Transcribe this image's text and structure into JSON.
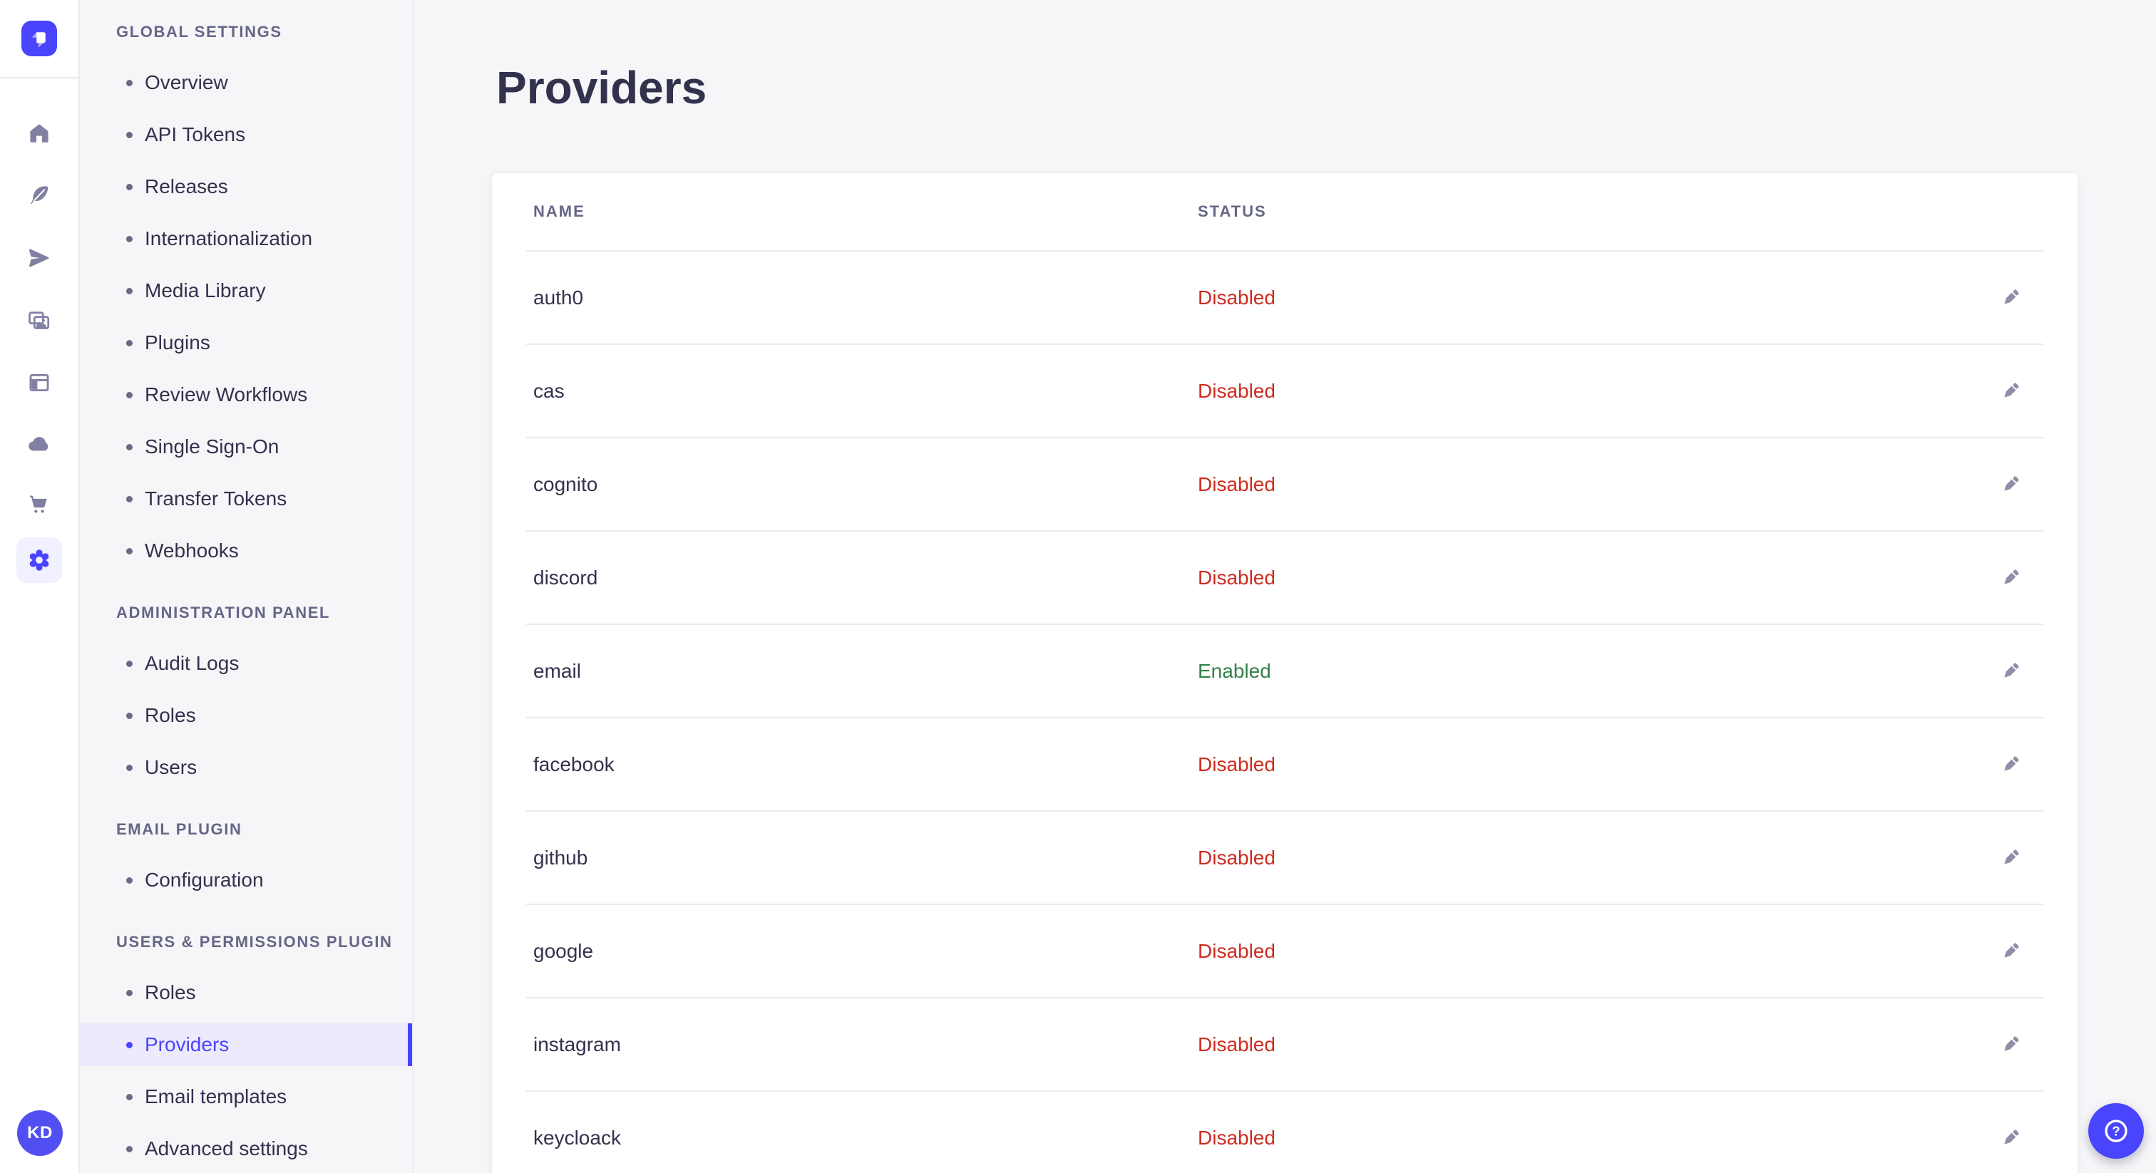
{
  "colors": {
    "brand": "#4945ff",
    "background": "#f6f6f9",
    "card": "#ffffff",
    "border": "#eaeaef",
    "text": "#32324d",
    "muted": "#666687",
    "status_disabled": "#d02b20",
    "status_enabled": "#328048",
    "active_item_bg": "#edeafd",
    "rail_icon": "#8180a3"
  },
  "rail": {
    "logo_icon": "strapi-logo-icon",
    "icons": [
      {
        "name": "home-icon"
      },
      {
        "name": "feather-icon"
      },
      {
        "name": "send-icon"
      },
      {
        "name": "media-library-icon"
      },
      {
        "name": "layout-icon"
      },
      {
        "name": "cloud-icon"
      },
      {
        "name": "cart-icon"
      },
      {
        "name": "gear-icon",
        "active": true
      }
    ],
    "user_initials": "KD"
  },
  "sidebar": {
    "sections": [
      {
        "label": "Global Settings",
        "items": [
          {
            "label": "Overview"
          },
          {
            "label": "API Tokens"
          },
          {
            "label": "Releases"
          },
          {
            "label": "Internationalization"
          },
          {
            "label": "Media Library"
          },
          {
            "label": "Plugins"
          },
          {
            "label": "Review Workflows"
          },
          {
            "label": "Single Sign-On"
          },
          {
            "label": "Transfer Tokens"
          },
          {
            "label": "Webhooks"
          }
        ]
      },
      {
        "label": "Administration Panel",
        "items": [
          {
            "label": "Audit Logs"
          },
          {
            "label": "Roles"
          },
          {
            "label": "Users"
          }
        ]
      },
      {
        "label": "Email Plugin",
        "items": [
          {
            "label": "Configuration"
          }
        ]
      },
      {
        "label": "Users & Permissions plugin",
        "items": [
          {
            "label": "Roles"
          },
          {
            "label": "Providers",
            "active": true
          },
          {
            "label": "Email templates"
          },
          {
            "label": "Advanced settings"
          }
        ]
      }
    ]
  },
  "page": {
    "title": "Providers"
  },
  "table": {
    "columns": [
      "Name",
      "Status"
    ],
    "edit_icon": "pencil-icon",
    "rows": [
      {
        "name": "auth0",
        "status": "Disabled"
      },
      {
        "name": "cas",
        "status": "Disabled"
      },
      {
        "name": "cognito",
        "status": "Disabled"
      },
      {
        "name": "discord",
        "status": "Disabled"
      },
      {
        "name": "email",
        "status": "Enabled"
      },
      {
        "name": "facebook",
        "status": "Disabled"
      },
      {
        "name": "github",
        "status": "Disabled"
      },
      {
        "name": "google",
        "status": "Disabled"
      },
      {
        "name": "instagram",
        "status": "Disabled"
      },
      {
        "name": "keycloack",
        "status": "Disabled"
      }
    ]
  },
  "help": {
    "icon": "question-mark-icon"
  }
}
